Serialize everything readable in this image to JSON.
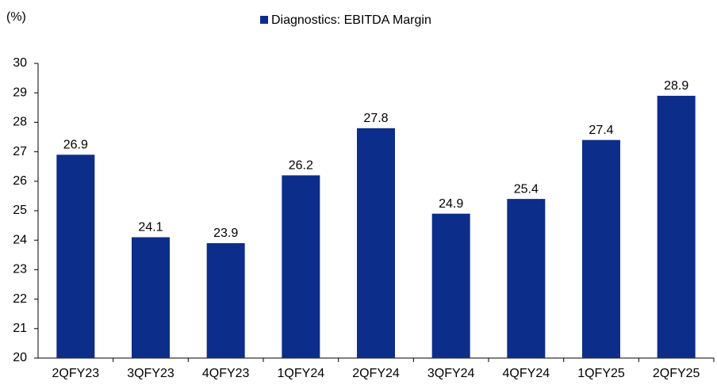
{
  "chart_data": {
    "type": "bar",
    "y_label": "(%)",
    "series": [
      {
        "name": "Diagnostics: EBITDA Margin",
        "color": "#0c2d8a",
        "values": [
          26.9,
          24.1,
          23.9,
          26.2,
          27.8,
          24.9,
          25.4,
          27.4,
          28.9
        ]
      }
    ],
    "categories": [
      "2QFY23",
      "3QFY23",
      "4QFY23",
      "1QFY24",
      "2QFY24",
      "3QFY24",
      "4QFY24",
      "1QFY25",
      "2QFY25"
    ],
    "ylim": [
      20,
      30
    ],
    "yticks": [
      20,
      21,
      22,
      23,
      24,
      25,
      26,
      27,
      28,
      29,
      30
    ],
    "legend": "top",
    "grid": false
  }
}
